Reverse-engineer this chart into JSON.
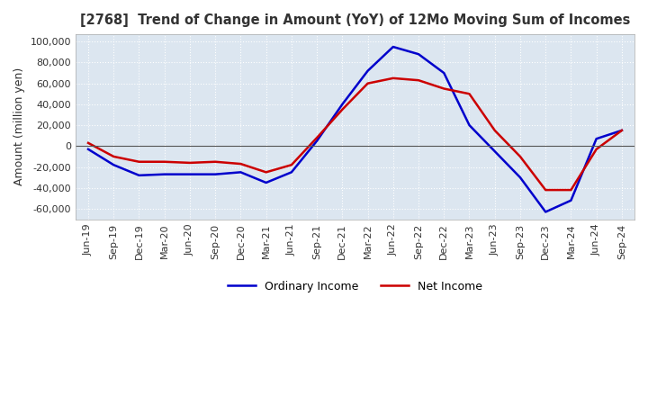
{
  "title": "[2768]  Trend of Change in Amount (YoY) of 12Mo Moving Sum of Incomes",
  "ylabel": "Amount (million yen)",
  "ylim": [
    -70000,
    107000
  ],
  "yticks": [
    -60000,
    -40000,
    -20000,
    0,
    20000,
    40000,
    60000,
    80000,
    100000
  ],
  "background_color": "#dce6f0",
  "plot_bg_color": "#dce6f0",
  "grid_color": "#ffffff",
  "ordinary_income_color": "#0000cc",
  "net_income_color": "#cc0000",
  "dates": [
    "Jun-19",
    "Sep-19",
    "Dec-19",
    "Mar-20",
    "Jun-20",
    "Sep-20",
    "Dec-20",
    "Mar-21",
    "Jun-21",
    "Sep-21",
    "Dec-21",
    "Mar-22",
    "Jun-22",
    "Sep-22",
    "Dec-22",
    "Mar-23",
    "Jun-23",
    "Sep-23",
    "Dec-23",
    "Mar-24",
    "Jun-24",
    "Sep-24"
  ],
  "ordinary_income": [
    -3000,
    -18000,
    -28000,
    -27000,
    -27000,
    -27000,
    -25000,
    -35000,
    -25000,
    5000,
    40000,
    72000,
    95000,
    88000,
    70000,
    20000,
    -5000,
    -30000,
    -63000,
    -52000,
    7000,
    15000
  ],
  "net_income": [
    3000,
    -10000,
    -15000,
    -15000,
    -16000,
    -15000,
    -17000,
    -25000,
    -18000,
    8000,
    35000,
    60000,
    65000,
    63000,
    55000,
    50000,
    15000,
    -10000,
    -42000,
    -42000,
    -3000,
    15000
  ]
}
